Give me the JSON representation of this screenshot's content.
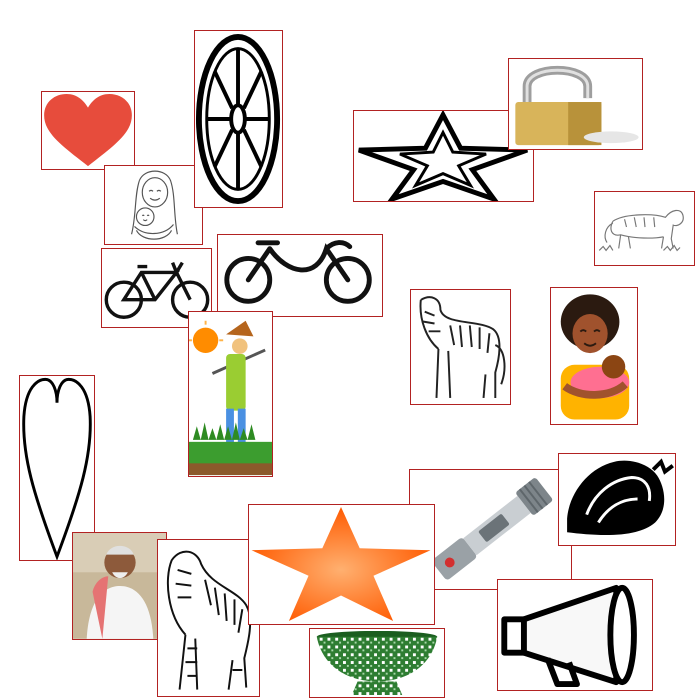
{
  "canvas": {
    "background": "#ffffff",
    "frame_color": "#b22222"
  },
  "items": [
    {
      "icon": "heart-icon",
      "fill": "#e74c3c"
    },
    {
      "icon": "wheel-icon"
    },
    {
      "icon": "star-outline-icon"
    },
    {
      "icon": "padlock-icon"
    },
    {
      "icon": "mother-child-sketch-icon"
    },
    {
      "icon": "tiger-sketch-icon"
    },
    {
      "icon": "bicycle-icon"
    },
    {
      "icon": "bicycle-line-icon"
    },
    {
      "icon": "farmer-icon"
    },
    {
      "icon": "tiger-icon"
    },
    {
      "icon": "mother-baby-icon"
    },
    {
      "icon": "heart-outline-icon"
    },
    {
      "icon": "flashlight-icon"
    },
    {
      "icon": "conch-shell-icon"
    },
    {
      "icon": "old-man-photo-icon"
    },
    {
      "icon": "tiger-walking-icon"
    },
    {
      "icon": "star-icon",
      "fill": "#ff6a1a"
    },
    {
      "icon": "megaphone-icon"
    },
    {
      "icon": "basket-icon",
      "fill": "#2e7d32"
    }
  ]
}
